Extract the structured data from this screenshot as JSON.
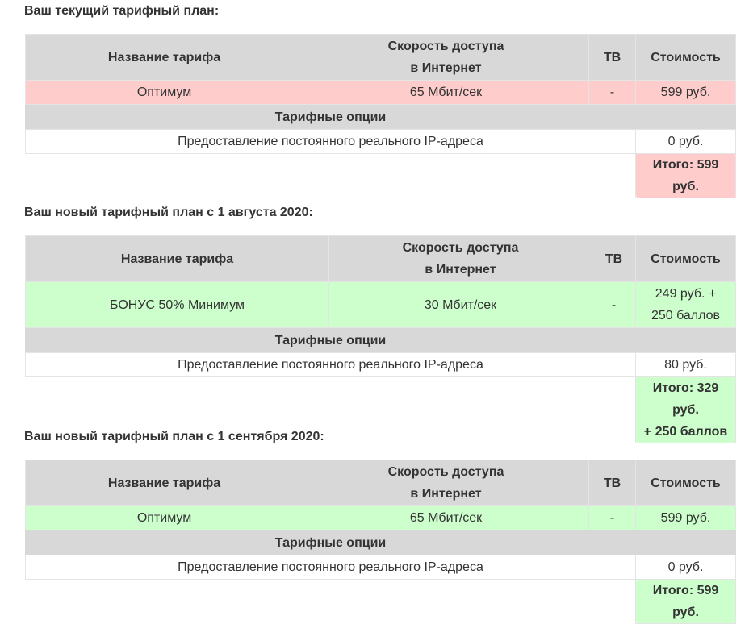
{
  "headers": {
    "name": "Название тарифа",
    "speed_line1": "Скорость доступа",
    "speed_line2": "в Интернет",
    "tv": "ТВ",
    "cost": "Стоимость",
    "options": "Тарифные опции"
  },
  "colors": {
    "header_bg": "#d8d8d8",
    "current_row": "#ffcccc",
    "new_row": "#ccffcc"
  },
  "plans": [
    {
      "title": "Ваш текущий тарифный план:",
      "tariff": "Оптимум",
      "speed": "65 Мбит/сек",
      "tv": "-",
      "cost_line1": "599 руб.",
      "cost_line2": "",
      "option_name": "Предоставление постоянного реального IP-адреса",
      "option_price": "0 руб.",
      "total_line1": "Итого: 599 руб.",
      "total_line2": ""
    },
    {
      "title": "Ваш новый тарифный план с 1 августа 2020:",
      "tariff": "БОНУС 50% Минимум",
      "speed": "30 Мбит/сек",
      "tv": "-",
      "cost_line1": "249 руб. +",
      "cost_line2": "250 баллов",
      "option_name": "Предоставление постоянного реального IP-адреса",
      "option_price": "80 руб.",
      "total_line1": "Итого: 329 руб.",
      "total_line2": "+ 250 баллов"
    },
    {
      "title": "Ваш новый тарифный план с 1 сентября 2020:",
      "tariff": "Оптимум",
      "speed": "65 Мбит/сек",
      "tv": "-",
      "cost_line1": "599 руб.",
      "cost_line2": "",
      "option_name": "Предоставление постоянного реального IP-адреса",
      "option_price": "0 руб.",
      "total_line1": "Итого: 599 руб.",
      "total_line2": ""
    }
  ]
}
